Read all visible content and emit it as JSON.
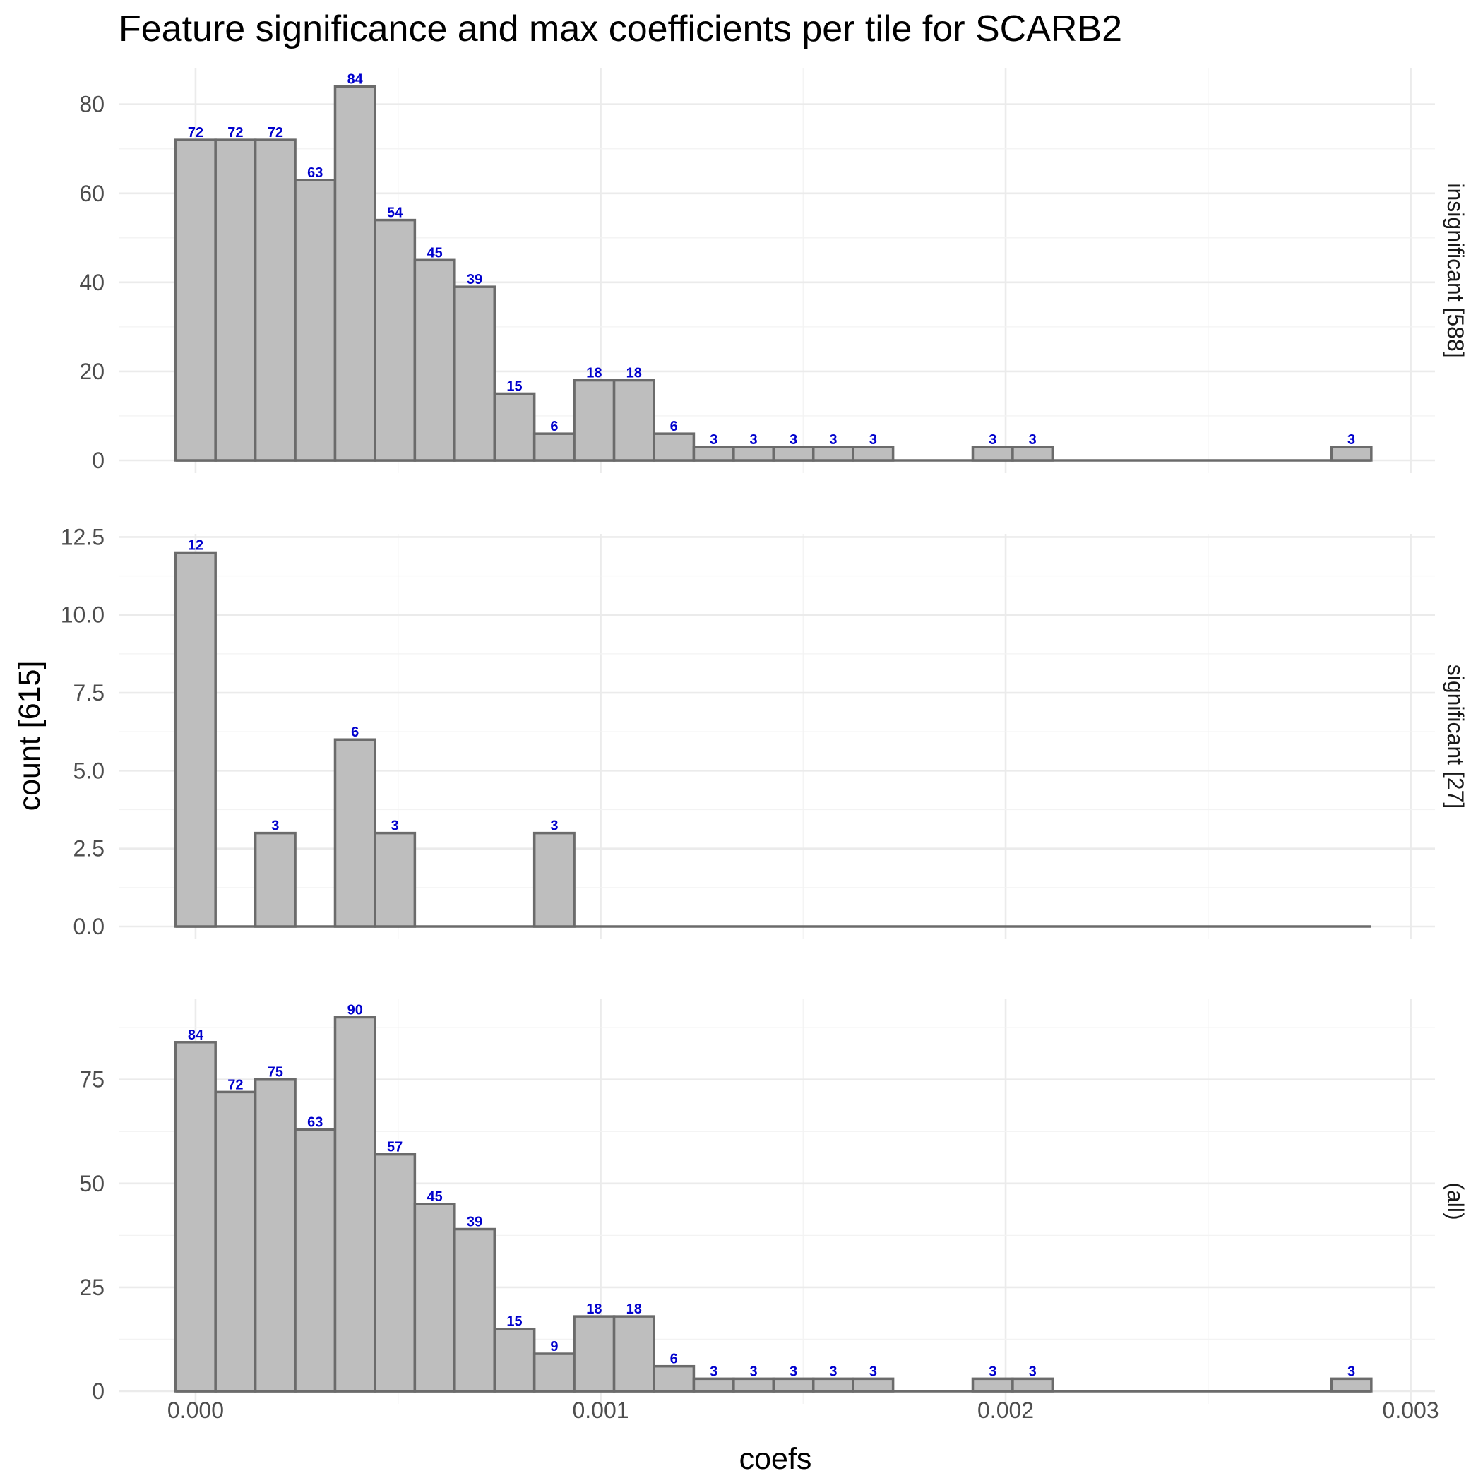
{
  "chart_data": {
    "type": "bar",
    "title": "Feature significance and max coefficients per tile for SCARB2",
    "xlabel": "coefs",
    "ylabel": "count [615]",
    "xlim": [
      -0.00019,
      0.00306
    ],
    "x_ticks": [
      "0.000",
      "0.001",
      "0.002",
      "0.003"
    ],
    "x_tick_values": [
      0,
      0.001,
      0.002,
      0.003
    ],
    "grid": true,
    "bin_width": 9.84e-05,
    "bin_centers": [
      0,
      9.84e-05,
      0.0001968,
      0.0002952,
      0.0003936,
      0.000492,
      0.0005904,
      0.0006888,
      0.0007872,
      0.0008856,
      0.000984,
      0.0010824,
      0.0011808,
      0.0012792,
      0.0013776,
      0.001476,
      0.0015744,
      0.0016728,
      0.0017712,
      0.0018696,
      0.001968,
      0.0020664,
      0.0021648,
      0.0022632,
      0.0023616,
      0.00246,
      0.0025584,
      0.0026568,
      0.0027552,
      0.0028536
    ],
    "label_color": "#0000CD",
    "bar_fill": "#bebebe",
    "panels": [
      {
        "strip_label": "insignificant [588]",
        "ylim": [
          0,
          88.2
        ],
        "y_ticks": [
          0,
          20,
          40,
          60,
          80
        ],
        "y_tick_labels": [
          "0",
          "20",
          "40",
          "60",
          "80"
        ],
        "values": [
          72,
          72,
          72,
          63,
          84,
          54,
          45,
          39,
          15,
          6,
          18,
          18,
          6,
          3,
          3,
          3,
          3,
          3,
          0,
          0,
          3,
          3,
          0,
          0,
          0,
          0,
          0,
          0,
          0,
          3
        ]
      },
      {
        "strip_label": "significant [27]",
        "ylim": [
          0,
          12.6
        ],
        "y_ticks": [
          0,
          2.5,
          5,
          7.5,
          10,
          12.5
        ],
        "y_tick_labels": [
          "0.0",
          "2.5",
          "5.0",
          "7.5",
          "10.0",
          "12.5"
        ],
        "values": [
          12,
          0,
          3,
          0,
          6,
          3,
          0,
          0,
          0,
          3,
          0,
          0,
          0,
          0,
          0,
          0,
          0,
          0,
          0,
          0,
          0,
          0,
          0,
          0,
          0,
          0,
          0,
          0,
          0,
          0
        ]
      },
      {
        "strip_label": "(all)",
        "ylim": [
          0,
          94.5
        ],
        "y_ticks": [
          0,
          25,
          50,
          75
        ],
        "y_tick_labels": [
          "0",
          "25",
          "50",
          "75"
        ],
        "values": [
          84,
          72,
          75,
          63,
          90,
          57,
          45,
          39,
          15,
          9,
          18,
          18,
          6,
          3,
          3,
          3,
          3,
          3,
          0,
          0,
          3,
          3,
          0,
          0,
          0,
          0,
          0,
          0,
          0,
          3
        ]
      }
    ]
  }
}
